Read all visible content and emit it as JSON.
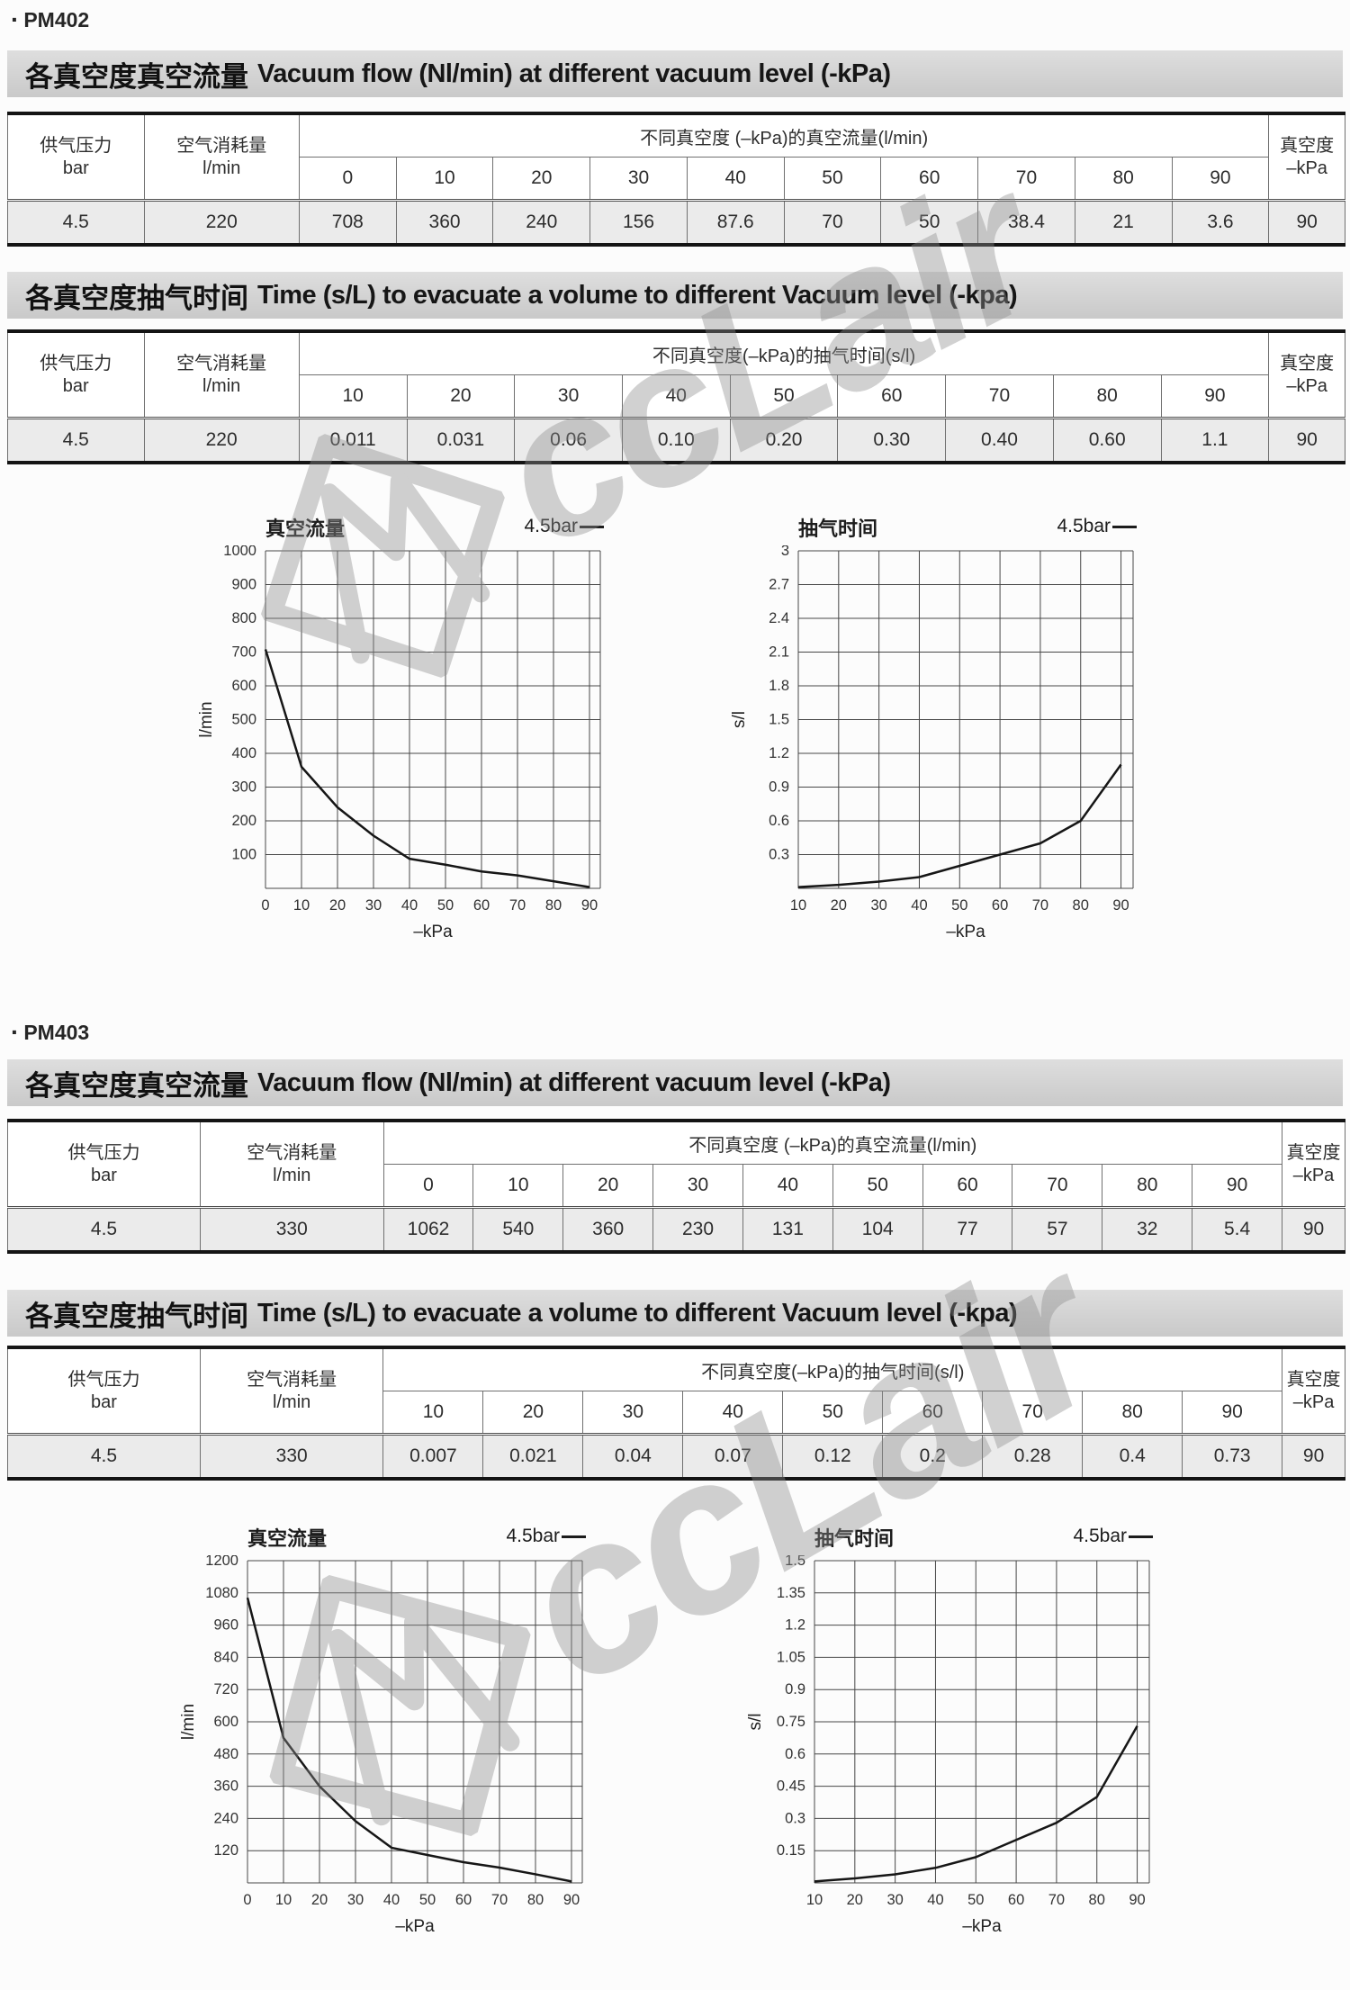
{
  "watermark": {
    "text": "ccLair"
  },
  "products": [
    {
      "bullet": "·",
      "name": "PM402",
      "flow": {
        "title_zh": "各真空度真空流量",
        "title_en": "Vacuum flow (Nl/min) at different vacuum level (-kPa)",
        "table": {
          "pressure_label": "供气压力",
          "pressure_unit": "bar",
          "consumption_label": "空气消耗量",
          "consumption_unit": "l/min",
          "span_label": "不同真空度 (–kPa)的真空流量(l/min)",
          "vacuum_label": "真空度",
          "vacuum_unit": "–kPa",
          "levels": [
            "0",
            "10",
            "20",
            "30",
            "40",
            "50",
            "60",
            "70",
            "80",
            "90"
          ],
          "pressure": "4.5",
          "consumption": "220",
          "values": [
            "708",
            "360",
            "240",
            "156",
            "87.6",
            "70",
            "50",
            "38.4",
            "21",
            "3.6"
          ],
          "vacuum_level": "90"
        }
      },
      "time": {
        "title_zh": "各真空度抽气时间",
        "title_en": "Time (s/L) to evacuate a volume to different Vacuum level (-kpa)",
        "table": {
          "pressure_label": "供气压力",
          "pressure_unit": "bar",
          "consumption_label": "空气消耗量",
          "consumption_unit": "l/min",
          "span_label": "不同真空度(–kPa)的抽气时间(s/l)",
          "vacuum_label": "真空度",
          "vacuum_unit": "–kPa",
          "levels": [
            "10",
            "20",
            "30",
            "40",
            "50",
            "60",
            "70",
            "80",
            "90"
          ],
          "pressure": "4.5",
          "consumption": "220",
          "values": [
            "0.011",
            "0.031",
            "0.06",
            "0.10",
            "0.20",
            "0.30",
            "0.40",
            "0.60",
            "1.1"
          ],
          "vacuum_level": "90"
        }
      }
    },
    {
      "bullet": "·",
      "name": "PM403",
      "flow": {
        "title_zh": "各真空度真空流量",
        "title_en": "Vacuum flow (Nl/min) at different vacuum level (-kPa)",
        "table": {
          "pressure_label": "供气压力",
          "pressure_unit": "bar",
          "consumption_label": "空气消耗量",
          "consumption_unit": "l/min",
          "span_label": "不同真空度 (–kPa)的真空流量(l/min)",
          "vacuum_label": "真空度",
          "vacuum_unit": "–kPa",
          "levels": [
            "0",
            "10",
            "20",
            "30",
            "40",
            "50",
            "60",
            "70",
            "80",
            "90"
          ],
          "pressure": "4.5",
          "consumption": "330",
          "values": [
            "1062",
            "540",
            "360",
            "230",
            "131",
            "104",
            "77",
            "57",
            "32",
            "5.4"
          ],
          "vacuum_level": "90"
        }
      },
      "time": {
        "title_zh": "各真空度抽气时间",
        "title_en": "Time (s/L) to evacuate a volume to different Vacuum level (-kpa)",
        "table": {
          "pressure_label": "供气压力",
          "pressure_unit": "bar",
          "consumption_label": "空气消耗量",
          "consumption_unit": "l/min",
          "span_label": "不同真空度(–kPa)的抽气时间(s/l)",
          "vacuum_label": "真空度",
          "vacuum_unit": "–kPa",
          "levels": [
            "10",
            "20",
            "30",
            "40",
            "50",
            "60",
            "70",
            "80",
            "90"
          ],
          "pressure": "4.5",
          "consumption": "330",
          "values": [
            "0.007",
            "0.021",
            "0.04",
            "0.07",
            "0.12",
            "0.2",
            "0.28",
            "0.4",
            "0.73"
          ],
          "vacuum_level": "90"
        }
      }
    }
  ],
  "chart_data": [
    {
      "type": "line",
      "product": "PM402",
      "title": "真空流量",
      "legend": "4.5bar",
      "xlabel": "–kPa",
      "ylabel": "l/min",
      "x_ticks": [
        "0",
        "10",
        "20",
        "30",
        "40",
        "50",
        "60",
        "70",
        "80",
        "90"
      ],
      "y_ticks": [
        "100",
        "200",
        "300",
        "400",
        "500",
        "600",
        "700",
        "800",
        "900",
        "1000"
      ],
      "x_range": [
        0,
        93
      ],
      "y_range": [
        0,
        1000
      ],
      "grid": true,
      "legend_position": "top-right",
      "x": [
        0,
        10,
        20,
        30,
        40,
        50,
        60,
        70,
        80,
        90
      ],
      "y": [
        708,
        360,
        240,
        156,
        87.6,
        70,
        50,
        38.4,
        21,
        3.6
      ]
    },
    {
      "type": "line",
      "product": "PM402",
      "title": "抽气时间",
      "legend": "4.5bar",
      "xlabel": "–kPa",
      "ylabel": "s/l",
      "x_ticks": [
        "10",
        "20",
        "30",
        "40",
        "50",
        "60",
        "70",
        "80",
        "90"
      ],
      "y_ticks": [
        "0.3",
        "0.6",
        "0.9",
        "1.2",
        "1.5",
        "1.8",
        "2.1",
        "2.4",
        "2.7",
        "3"
      ],
      "x_range": [
        10,
        93
      ],
      "y_range": [
        0,
        3
      ],
      "grid": true,
      "legend_position": "top-right",
      "x": [
        10,
        20,
        30,
        40,
        50,
        60,
        70,
        80,
        90
      ],
      "y": [
        0.011,
        0.031,
        0.06,
        0.1,
        0.2,
        0.3,
        0.4,
        0.6,
        1.1
      ]
    },
    {
      "type": "line",
      "product": "PM403",
      "title": "真空流量",
      "legend": "4.5bar",
      "xlabel": "–kPa",
      "ylabel": "l/min",
      "x_ticks": [
        "0",
        "10",
        "20",
        "30",
        "40",
        "50",
        "60",
        "70",
        "80",
        "90"
      ],
      "y_ticks": [
        "120",
        "240",
        "360",
        "480",
        "600",
        "720",
        "840",
        "960",
        "1080",
        "1200"
      ],
      "x_range": [
        0,
        93
      ],
      "y_range": [
        0,
        1200
      ],
      "grid": true,
      "legend_position": "top-right",
      "x": [
        0,
        10,
        20,
        30,
        40,
        50,
        60,
        70,
        80,
        90
      ],
      "y": [
        1062,
        540,
        360,
        230,
        131,
        104,
        77,
        57,
        32,
        5.4
      ]
    },
    {
      "type": "line",
      "product": "PM403",
      "title": "抽气时间",
      "legend": "4.5bar",
      "xlabel": "–kPa",
      "ylabel": "s/l",
      "x_ticks": [
        "10",
        "20",
        "30",
        "40",
        "50",
        "60",
        "70",
        "80",
        "90"
      ],
      "y_ticks": [
        "0.15",
        "0.3",
        "0.45",
        "0.6",
        "0.75",
        "0.9",
        "1.05",
        "1.2",
        "1.35",
        "1.5"
      ],
      "x_range": [
        10,
        93
      ],
      "y_range": [
        0,
        1.5
      ],
      "grid": true,
      "legend_position": "top-right",
      "x": [
        10,
        20,
        30,
        40,
        50,
        60,
        70,
        80,
        90
      ],
      "y": [
        0.007,
        0.021,
        0.04,
        0.07,
        0.12,
        0.2,
        0.28,
        0.4,
        0.73
      ]
    }
  ]
}
